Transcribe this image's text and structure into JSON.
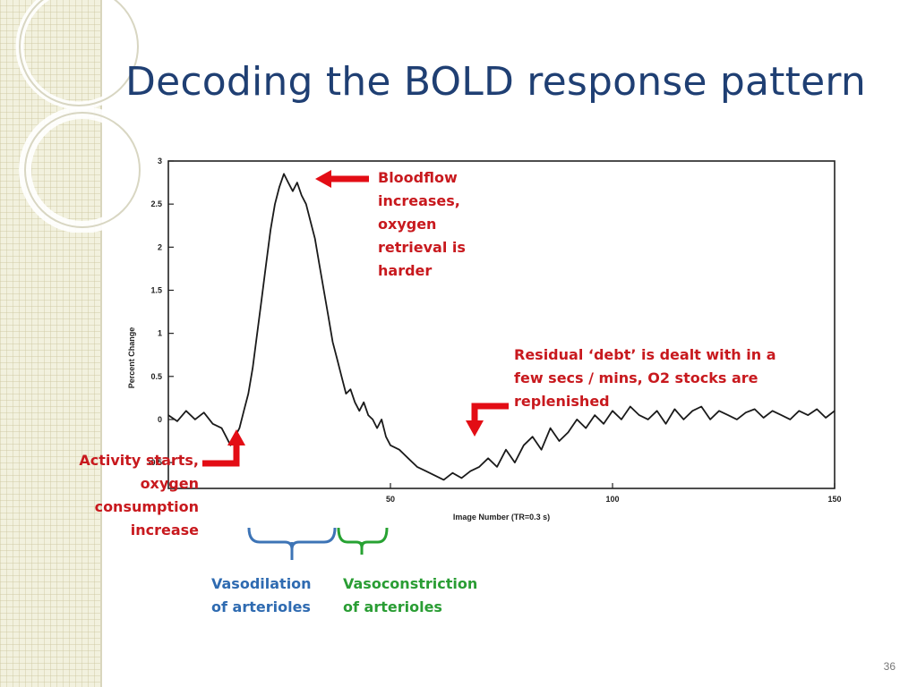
{
  "slide": {
    "title": "Decoding the BOLD response pattern",
    "page_number": "36"
  },
  "annotations": {
    "bloodflow": [
      "Bloodflow",
      "increases,",
      "oxygen",
      "retrieval is",
      "harder"
    ],
    "residual": [
      "Residual ‘debt’ is dealt with in a",
      "few secs / mins, O2 stocks are",
      "replenished"
    ],
    "activity": [
      "Activity starts,",
      "oxygen",
      "consumption",
      "increase"
    ],
    "vasodilation": [
      "Vasodilation",
      "of arterioles"
    ],
    "vasoconstriction": [
      "Vasoconstriction",
      "of arterioles"
    ]
  },
  "colors": {
    "title": "#1f3f73",
    "annotation_red": "#c8191e",
    "vasodilation_blue": "#2f6bb1",
    "vasoconstriction_green": "#2a9d34",
    "trace": "#1a1a1a"
  },
  "chart_data": {
    "type": "line",
    "title": "",
    "xlabel": "Image Number (TR=0.3 s)",
    "ylabel": "Percent Change",
    "xlim": [
      0,
      150
    ],
    "ylim": [
      -0.8,
      3
    ],
    "x_ticks": [
      "50",
      "100",
      "150"
    ],
    "y_ticks": [
      "3",
      "2.5",
      "2",
      "1.5",
      "1",
      "0.5",
      "0",
      "-0.5"
    ],
    "grid": false,
    "series": [
      {
        "x": [
          0,
          2,
          4,
          6,
          8,
          10,
          12,
          13,
          14,
          15,
          16,
          17,
          18,
          19,
          20,
          21,
          22,
          23,
          24,
          25,
          26,
          27,
          28,
          29,
          30,
          31,
          32,
          33,
          34,
          35,
          36,
          37,
          38,
          39,
          40,
          41,
          42,
          43,
          44,
          45,
          46,
          47,
          48,
          49,
          50,
          52,
          54,
          56,
          58,
          60,
          62,
          64,
          66,
          68,
          70,
          72,
          74,
          76,
          78,
          80,
          82,
          84,
          86,
          88,
          90,
          92,
          94,
          96,
          98,
          100,
          102,
          104,
          106,
          108,
          110,
          112,
          114,
          116,
          118,
          120,
          122,
          124,
          126,
          128,
          130,
          132,
          134,
          136,
          138,
          140,
          142,
          144,
          146,
          148,
          150
        ],
        "y": [
          0.05,
          -0.02,
          0.1,
          0.0,
          0.08,
          -0.05,
          -0.1,
          -0.2,
          -0.3,
          -0.2,
          -0.1,
          0.1,
          0.3,
          0.6,
          1.0,
          1.4,
          1.8,
          2.2,
          2.5,
          2.7,
          2.85,
          2.75,
          2.65,
          2.75,
          2.6,
          2.5,
          2.3,
          2.1,
          1.8,
          1.5,
          1.2,
          0.9,
          0.7,
          0.5,
          0.3,
          0.35,
          0.2,
          0.1,
          0.2,
          0.05,
          0.0,
          -0.1,
          0.0,
          -0.2,
          -0.3,
          -0.35,
          -0.45,
          -0.55,
          -0.6,
          -0.65,
          -0.7,
          -0.62,
          -0.68,
          -0.6,
          -0.55,
          -0.45,
          -0.55,
          -0.35,
          -0.5,
          -0.3,
          -0.2,
          -0.35,
          -0.1,
          -0.25,
          -0.15,
          0.0,
          -0.1,
          0.05,
          -0.05,
          0.1,
          0.0,
          0.15,
          0.05,
          0.0,
          0.1,
          -0.05,
          0.12,
          0.0,
          0.1,
          0.15,
          0.0,
          0.1,
          0.05,
          0.0,
          0.08,
          0.12,
          0.02,
          0.1,
          0.05,
          0.0,
          0.1,
          0.05,
          0.12,
          0.02,
          0.1
        ]
      }
    ]
  }
}
